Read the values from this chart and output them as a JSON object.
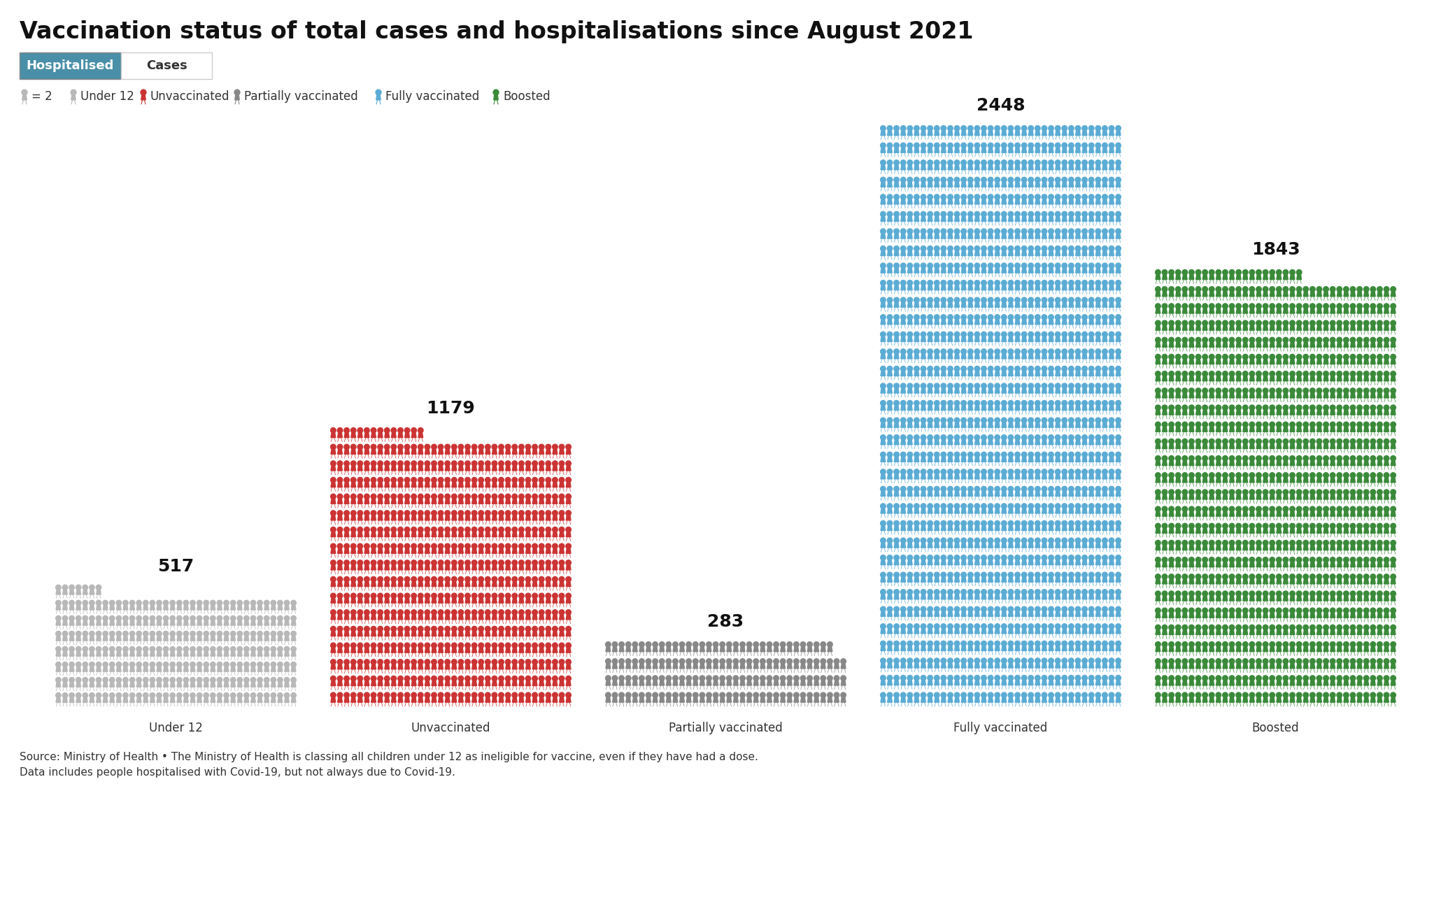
{
  "title": "Vaccination status of total cases and hospitalisations since August 2021",
  "tab_active": "Hospitalised",
  "tab_inactive": "Cases",
  "tab_active_color": "#4a8fa8",
  "tab_inactive_color": "#f5f5f5",
  "categories": [
    "Under 12",
    "Unvaccinated",
    "Partially vaccinated",
    "Fully vaccinated",
    "Boosted"
  ],
  "values": [
    517,
    1179,
    283,
    2448,
    1843
  ],
  "colors": [
    "#b8b8b8",
    "#cc3333",
    "#888888",
    "#5bacd4",
    "#3a8a3a"
  ],
  "legend_colors": [
    "#b8b8b8",
    "#b8b8b8",
    "#cc3333",
    "#888888",
    "#5bacd4",
    "#3a8a3a"
  ],
  "legend_labels": [
    "= 2",
    "Under 12",
    "Unvaccinated",
    "Partially vaccinated",
    "Fully vaccinated",
    "Boosted"
  ],
  "persons_per_icon": 2,
  "source_line1": "Source: Ministry of Health • The Ministry of Health is classing all children under 12 as ineligible for vaccine, even if they have had a dose.",
  "source_line2": "Data includes people hospitalised with Covid-19, but not always due to Covid-19.",
  "background_color": "#ffffff",
  "title_fontsize": 24,
  "label_fontsize": 12,
  "value_fontsize": 18,
  "source_fontsize": 11
}
